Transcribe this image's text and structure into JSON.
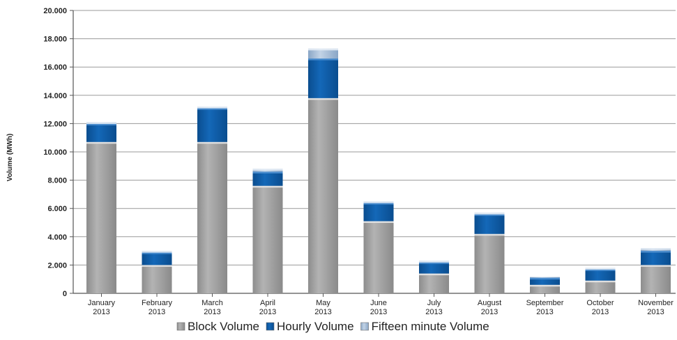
{
  "chart_data": {
    "type": "bar",
    "stacked": true,
    "ylabel": "Volume (MWh)",
    "xlabel": "",
    "ylim": [
      0,
      20000
    ],
    "ytick_values": [
      0,
      2000,
      4000,
      6000,
      8000,
      10000,
      12000,
      14000,
      16000,
      18000,
      20000
    ],
    "ytick_labels": [
      "0",
      "2.000",
      "4.000",
      "6.000",
      "8.000",
      "10.000",
      "12.000",
      "14.000",
      "16.000",
      "18.000",
      "20.000"
    ],
    "grid": true,
    "legend_position": "bottom",
    "categories": [
      {
        "month": "January",
        "year": "2013"
      },
      {
        "month": "February",
        "year": "2013"
      },
      {
        "month": "March",
        "year": "2013"
      },
      {
        "month": "April",
        "year": "2013"
      },
      {
        "month": "May",
        "year": "2013"
      },
      {
        "month": "June",
        "year": "2013"
      },
      {
        "month": "July",
        "year": "2013"
      },
      {
        "month": "August",
        "year": "2013"
      },
      {
        "month": "September",
        "year": "2013"
      },
      {
        "month": "October",
        "year": "2013"
      },
      {
        "month": "November",
        "year": "2013"
      }
    ],
    "series": [
      {
        "name": "Block Volume",
        "color": "#a3a3a3",
        "values": [
          10700,
          2000,
          10700,
          7600,
          13800,
          5100,
          1400,
          4200,
          600,
          900,
          2000
        ]
      },
      {
        "name": "Hourly Volume",
        "color": "#0f5ea8",
        "values": [
          1300,
          900,
          2400,
          1000,
          2800,
          1300,
          800,
          1400,
          500,
          800,
          1000
        ]
      },
      {
        "name": "Fifteen minute Volume",
        "color": "#a9bfd8",
        "values": [
          100,
          100,
          100,
          200,
          700,
          100,
          100,
          100,
          50,
          100,
          200
        ]
      }
    ]
  }
}
